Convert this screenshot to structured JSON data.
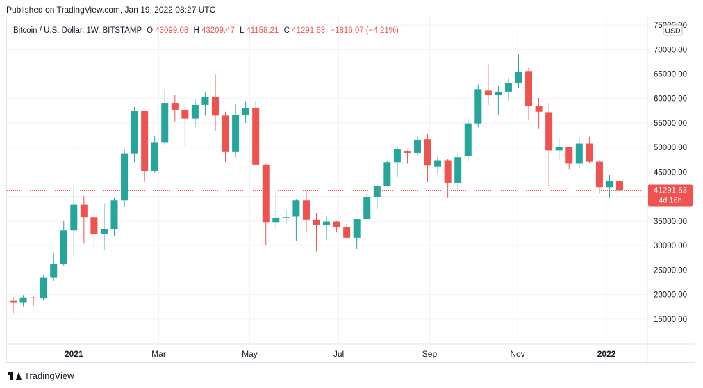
{
  "published": "Published on TradingView.com, Jan 19, 2022 08:27 UTC",
  "legend": {
    "symbol": "Bitcoin / U.S. Dollar, 1W, BITSTAMP",
    "o_label": "O",
    "o": "43099.08",
    "h_label": "H",
    "h": "43209.47",
    "l_label": "L",
    "l": "41158.21",
    "c_label": "C",
    "c": "41291.63",
    "change": "−1816.07 (−4.21%)"
  },
  "currency_badge": "USD",
  "price_tag": {
    "price": "41291.63",
    "countdown": "4d 16h"
  },
  "footer": {
    "brand": "TradingView"
  },
  "colors": {
    "up": "#26a69a",
    "down": "#ef5350",
    "grid": "#f0f3fa",
    "axis_text": "#131722",
    "border": "#e0e3eb",
    "last_price_line": "#ef5350"
  },
  "chart_data": {
    "type": "candlestick",
    "interval": "1W",
    "ylim": [
      10000,
      76000
    ],
    "y_ticks": [
      "15000.00",
      "20000.00",
      "25000.00",
      "30000.00",
      "35000.00",
      "40000.00",
      "45000.00",
      "50000.00",
      "55000.00",
      "60000.00",
      "65000.00",
      "70000.00",
      "75000.00"
    ],
    "x_ticks": [
      {
        "label": "2021",
        "index": 6
      },
      {
        "label": "Mar",
        "index": 14.4
      },
      {
        "label": "May",
        "index": 23.4
      },
      {
        "label": "Jul",
        "index": 32.2
      },
      {
        "label": "Sep",
        "index": 41.2
      },
      {
        "label": "Nov",
        "index": 49.9
      },
      {
        "label": "2022",
        "index": 58.7
      }
    ],
    "last_price": 41291.63,
    "candles": [
      {
        "o": 18700,
        "h": 19500,
        "l": 16200,
        "c": 18300
      },
      {
        "o": 18300,
        "h": 19900,
        "l": 17600,
        "c": 19400
      },
      {
        "o": 19400,
        "h": 19600,
        "l": 17700,
        "c": 19300
      },
      {
        "o": 19200,
        "h": 24000,
        "l": 18700,
        "c": 23400
      },
      {
        "o": 23400,
        "h": 28500,
        "l": 22800,
        "c": 26200
      },
      {
        "o": 26200,
        "h": 35000,
        "l": 25900,
        "c": 33100
      },
      {
        "o": 33100,
        "h": 42000,
        "l": 28000,
        "c": 38300
      },
      {
        "o": 38300,
        "h": 40100,
        "l": 30400,
        "c": 35800
      },
      {
        "o": 35800,
        "h": 37800,
        "l": 29000,
        "c": 32300
      },
      {
        "o": 32300,
        "h": 38600,
        "l": 29000,
        "c": 33400
      },
      {
        "o": 33400,
        "h": 39700,
        "l": 31900,
        "c": 39200
      },
      {
        "o": 39200,
        "h": 49700,
        "l": 38000,
        "c": 48800
      },
      {
        "o": 48800,
        "h": 58300,
        "l": 47000,
        "c": 57500
      },
      {
        "o": 57500,
        "h": 57600,
        "l": 43000,
        "c": 45200
      },
      {
        "o": 45200,
        "h": 52400,
        "l": 44800,
        "c": 51100
      },
      {
        "o": 51100,
        "h": 61800,
        "l": 50400,
        "c": 59100
      },
      {
        "o": 59100,
        "h": 60700,
        "l": 55300,
        "c": 57700
      },
      {
        "o": 57700,
        "h": 58500,
        "l": 50300,
        "c": 55900
      },
      {
        "o": 55900,
        "h": 59900,
        "l": 54100,
        "c": 58700
      },
      {
        "o": 58700,
        "h": 61200,
        "l": 56500,
        "c": 60300
      },
      {
        "o": 60300,
        "h": 64900,
        "l": 53400,
        "c": 56500
      },
      {
        "o": 56500,
        "h": 57300,
        "l": 47000,
        "c": 49200
      },
      {
        "o": 49200,
        "h": 58800,
        "l": 48000,
        "c": 56700
      },
      {
        "o": 56700,
        "h": 59500,
        "l": 55000,
        "c": 58100
      },
      {
        "o": 58100,
        "h": 59500,
        "l": 46400,
        "c": 46500
      },
      {
        "o": 46500,
        "h": 46700,
        "l": 30000,
        "c": 34800
      },
      {
        "o": 34800,
        "h": 40800,
        "l": 33400,
        "c": 35700
      },
      {
        "o": 35600,
        "h": 37300,
        "l": 34700,
        "c": 35800
      },
      {
        "o": 35900,
        "h": 39500,
        "l": 31000,
        "c": 39200
      },
      {
        "o": 39200,
        "h": 41300,
        "l": 32700,
        "c": 35300
      },
      {
        "o": 35300,
        "h": 36600,
        "l": 28800,
        "c": 34200
      },
      {
        "o": 34200,
        "h": 36100,
        "l": 31200,
        "c": 34900
      },
      {
        "o": 34900,
        "h": 35000,
        "l": 32700,
        "c": 33800
      },
      {
        "o": 33800,
        "h": 34500,
        "l": 31300,
        "c": 31600
      },
      {
        "o": 31600,
        "h": 35400,
        "l": 29300,
        "c": 35400
      },
      {
        "o": 35400,
        "h": 40500,
        "l": 35200,
        "c": 39800
      },
      {
        "o": 39800,
        "h": 42500,
        "l": 37300,
        "c": 42200
      },
      {
        "o": 42200,
        "h": 47200,
        "l": 42000,
        "c": 47000
      },
      {
        "o": 47000,
        "h": 50200,
        "l": 44000,
        "c": 49600
      },
      {
        "o": 49300,
        "h": 49400,
        "l": 46700,
        "c": 48900
      },
      {
        "o": 48900,
        "h": 52200,
        "l": 48500,
        "c": 51600
      },
      {
        "o": 51700,
        "h": 52900,
        "l": 42900,
        "c": 46300
      },
      {
        "o": 46100,
        "h": 48400,
        "l": 44600,
        "c": 47400
      },
      {
        "o": 47400,
        "h": 47700,
        "l": 39700,
        "c": 42800
      },
      {
        "o": 42800,
        "h": 48700,
        "l": 41300,
        "c": 48000
      },
      {
        "o": 48200,
        "h": 56100,
        "l": 47200,
        "c": 54900
      },
      {
        "o": 54900,
        "h": 62900,
        "l": 54100,
        "c": 61900
      },
      {
        "o": 61600,
        "h": 67000,
        "l": 58700,
        "c": 60800
      },
      {
        "o": 60800,
        "h": 62600,
        "l": 56700,
        "c": 61400
      },
      {
        "o": 61400,
        "h": 64200,
        "l": 59500,
        "c": 63200
      },
      {
        "o": 63200,
        "h": 69000,
        "l": 62200,
        "c": 65400
      },
      {
        "o": 65600,
        "h": 66300,
        "l": 55600,
        "c": 58400
      },
      {
        "o": 58500,
        "h": 60100,
        "l": 53900,
        "c": 57300
      },
      {
        "o": 57200,
        "h": 59100,
        "l": 42000,
        "c": 49400
      },
      {
        "o": 49400,
        "h": 51900,
        "l": 47400,
        "c": 50100
      },
      {
        "o": 50100,
        "h": 50100,
        "l": 45600,
        "c": 46700
      },
      {
        "o": 46700,
        "h": 51900,
        "l": 45700,
        "c": 50800
      },
      {
        "o": 50800,
        "h": 52200,
        "l": 46800,
        "c": 47100
      },
      {
        "o": 47100,
        "h": 47500,
        "l": 40600,
        "c": 41900
      },
      {
        "o": 41900,
        "h": 44400,
        "l": 39700,
        "c": 43100
      },
      {
        "o": 43099.08,
        "h": 43209.47,
        "l": 41158.21,
        "c": 41291.63
      }
    ]
  }
}
